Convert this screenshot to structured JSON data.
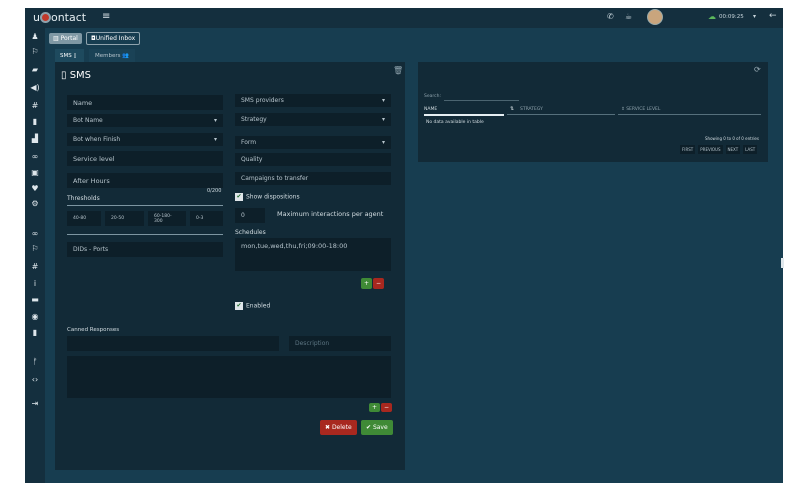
{
  "topbar": {
    "logo": "uContact",
    "timer": "00:09:25",
    "icons": [
      "menu-icon",
      "phone-icon",
      "coffee-icon",
      "avatar",
      "cloud-icon",
      "chevron-down-icon",
      "logout-icon"
    ]
  },
  "sidebar": {
    "icons": [
      "user-icon",
      "flag-icon",
      "truck-icon",
      "megaphone-icon",
      "hashtag-icon",
      "file-icon",
      "thumbs-up-icon",
      "gamepad-icon",
      "briefcase-icon",
      "heartbeat-icon",
      "cogs-icon",
      "gamepad-icon",
      "flag-icon",
      "hashtag-icon",
      "info-icon",
      "folder-icon",
      "circle-icon",
      "file-icon",
      "branch-icon",
      "code-icon",
      "sign-in-icon"
    ]
  },
  "nav": {
    "portal": "Portal",
    "inbox": "Unified Inbox"
  },
  "tabs": [
    {
      "label": "SMS ▯"
    },
    {
      "label": "Members 👥"
    }
  ],
  "form": {
    "title": "SMS",
    "name": "Name",
    "bot_name": "Bot Name",
    "bot_finish": "Bot when Finish",
    "service_level": "Service level",
    "after_hours": "After Hours",
    "counter": "0/200",
    "thresholds_label": "Thresholds",
    "thresholds": [
      "40-80",
      "20-50",
      "60-180-300",
      "0-3"
    ],
    "dids": "DIDs - Ports",
    "sms_providers": "SMS providers",
    "strategy": "Strategy",
    "form": "Form",
    "quality": "Quality",
    "campaigns": "Campaigns to transfer",
    "show_dispositions": "Show dispositions",
    "max_value": "0",
    "max_label": "Maximum interactions per agent",
    "schedules_label": "Schedules",
    "schedules": "mon,tue,wed,thu,fri;09:00-18:00",
    "enabled": "Enabled",
    "canned_label": "Canned Responses",
    "description": "Description",
    "delete": "Delete",
    "save": "Save"
  },
  "table": {
    "search": "Search:",
    "columns": [
      "NAME",
      "STRATEGY",
      "SERVICE LEVEL"
    ],
    "empty": "No data available in table",
    "info": "Showing 0 to 0 of 0 entries",
    "pager": [
      "FIRST",
      "PREVIOUS",
      "NEXT",
      "LAST"
    ]
  }
}
